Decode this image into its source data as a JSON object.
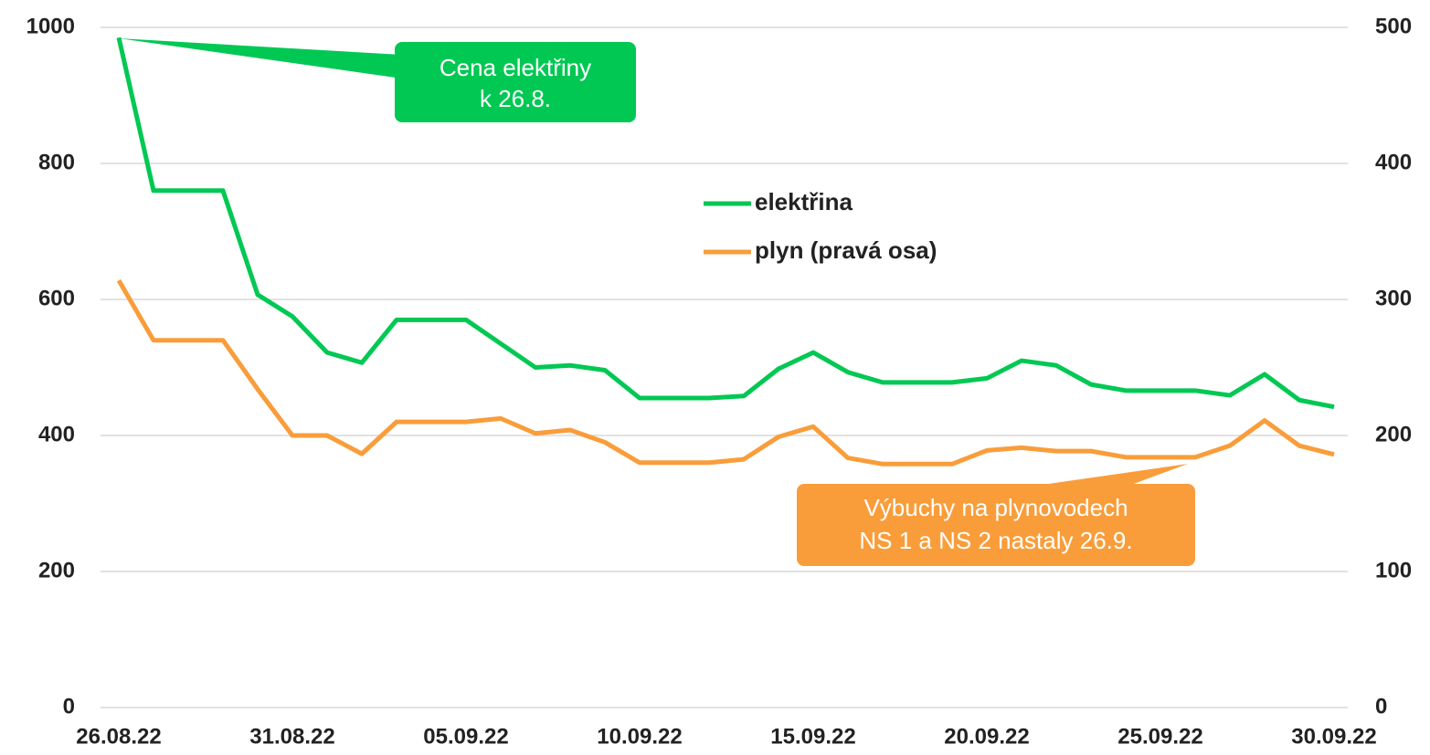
{
  "chart_data": {
    "type": "line",
    "categories": [
      "26.08.22",
      null,
      null,
      null,
      null,
      "31.08.22",
      null,
      null,
      null,
      null,
      "05.09.22",
      null,
      null,
      null,
      null,
      "10.09.22",
      null,
      null,
      null,
      null,
      "15.09.22",
      null,
      null,
      null,
      null,
      "20.09.22",
      null,
      null,
      null,
      null,
      "25.09.22",
      null,
      null,
      null,
      null,
      "30.09.22"
    ],
    "series": [
      {
        "name": "elektřina",
        "color": "#00c853",
        "values": [
          985,
          760,
          760,
          760,
          607,
          575,
          522,
          507,
          570,
          570,
          570,
          535,
          500,
          503,
          496,
          455,
          455,
          455,
          458,
          498,
          522,
          493,
          478,
          478,
          478,
          484,
          510,
          503,
          475,
          466,
          466,
          466,
          459,
          490,
          452,
          442
        ]
      },
      {
        "name": "plyn (pravá osa)",
        "color": "#f99d3a",
        "axis": "y2",
        "values": [
          314,
          270,
          270,
          270,
          234,
          200,
          200,
          186.5,
          210,
          210,
          210,
          212.5,
          201.5,
          204,
          195,
          180,
          180,
          180,
          182.5,
          199,
          206.5,
          183.5,
          179,
          179,
          179,
          189,
          191,
          188.5,
          188.5,
          184,
          184,
          184,
          192.5,
          211,
          192.5,
          186
        ]
      }
    ],
    "ylim": [
      0,
      1000
    ],
    "yticks": [
      0,
      200,
      400,
      600,
      800,
      1000
    ],
    "y2lim": [
      0,
      500
    ],
    "y2ticks": [
      0,
      100,
      200,
      300,
      400,
      500
    ],
    "grid": true,
    "annotations": [
      {
        "lines": [
          "Cena elektřiny",
          "k 26.8."
        ],
        "color": "#00c853"
      },
      {
        "lines": [
          "Výbuchy na plynovodech",
          "NS 1 a NS 2 nastaly 26.9."
        ],
        "color": "#f99d3a"
      }
    ]
  }
}
